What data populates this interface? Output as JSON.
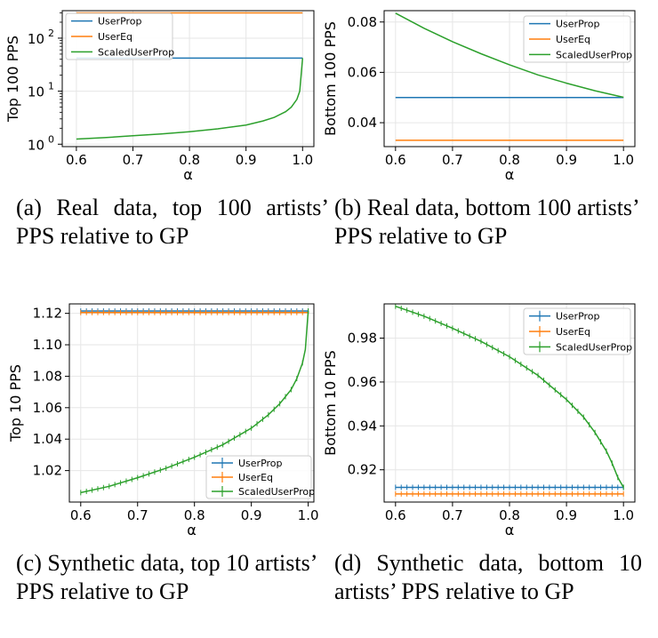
{
  "colors": {
    "UserProp": "#1f77b4",
    "UserEq": "#ff7f0e",
    "ScaledUserProp": "#2ca02c",
    "grid": "#e6e6e6",
    "axis": "#000000"
  },
  "chart_data": [
    {
      "type": "line",
      "panel": "a",
      "ylabel": "Top 100 PPS",
      "xlabel": "α",
      "yscale": "log",
      "xlim": [
        0.575,
        1.02
      ],
      "ylim": [
        0.9,
        330
      ],
      "xticks": [
        0.6,
        0.7,
        0.8,
        0.9,
        1.0
      ],
      "xtick_labels": [
        "0.6",
        "0.7",
        "0.8",
        "0.9",
        "1.0"
      ],
      "yticks": [
        1,
        10,
        100
      ],
      "ytick_labels": [
        "10",
        "10",
        "10"
      ],
      "ytick_exponents": [
        "0",
        "1",
        "2"
      ],
      "legend_position": "top-left",
      "markers": false,
      "grid": true,
      "series": [
        {
          "name": "UserProp",
          "x": [
            0.6,
            1.0
          ],
          "y": [
            42,
            42
          ]
        },
        {
          "name": "UserEq",
          "x": [
            0.6,
            1.0
          ],
          "y": [
            300,
            300
          ]
        },
        {
          "name": "ScaledUserProp",
          "x": [
            0.6,
            0.65,
            0.7,
            0.75,
            0.8,
            0.85,
            0.9,
            0.93,
            0.95,
            0.97,
            0.98,
            0.99,
            0.995,
            1.0
          ],
          "y": [
            1.25,
            1.33,
            1.44,
            1.56,
            1.72,
            1.95,
            2.3,
            2.75,
            3.2,
            4.1,
            5.0,
            7.0,
            10.0,
            42
          ]
        }
      ],
      "caption_line1": "(a) Real data, top 100 artists’",
      "caption_line2": "PPS relative to GP"
    },
    {
      "type": "line",
      "panel": "b",
      "ylabel": "Bottom 100 PPS",
      "xlabel": "α",
      "yscale": "linear",
      "xlim": [
        0.58,
        1.02
      ],
      "ylim": [
        0.0305,
        0.0845
      ],
      "xticks": [
        0.6,
        0.7,
        0.8,
        0.9,
        1.0
      ],
      "xtick_labels": [
        "0.6",
        "0.7",
        "0.8",
        "0.9",
        "1.0"
      ],
      "yticks": [
        0.04,
        0.06,
        0.08
      ],
      "ytick_labels": [
        "0.04",
        "0.06",
        "0.08"
      ],
      "legend_position": "top-right",
      "markers": false,
      "grid": true,
      "series": [
        {
          "name": "UserProp",
          "x": [
            0.6,
            1.0
          ],
          "y": [
            0.05,
            0.05
          ]
        },
        {
          "name": "UserEq",
          "x": [
            0.6,
            1.0
          ],
          "y": [
            0.033,
            0.033
          ]
        },
        {
          "name": "ScaledUserProp",
          "x": [
            0.6,
            0.65,
            0.7,
            0.75,
            0.8,
            0.85,
            0.9,
            0.95,
            1.0
          ],
          "y": [
            0.0835,
            0.0775,
            0.0722,
            0.0674,
            0.063,
            0.059,
            0.0557,
            0.0527,
            0.0501
          ]
        }
      ],
      "caption_line1": "(b) Real data, bottom 100 artists’",
      "caption_line2": "PPS relative to GP"
    },
    {
      "type": "line",
      "panel": "c",
      "ylabel": "Top 10 PPS",
      "xlabel": "α",
      "yscale": "linear",
      "xlim": [
        0.58,
        1.01
      ],
      "ylim": [
        1.0,
        1.126
      ],
      "xticks": [
        0.6,
        0.7,
        0.8,
        0.9,
        1.0
      ],
      "xtick_labels": [
        "0.6",
        "0.7",
        "0.8",
        "0.9",
        "1.0"
      ],
      "yticks": [
        1.02,
        1.04,
        1.06,
        1.08,
        1.1,
        1.12
      ],
      "ytick_labels": [
        "1.02",
        "1.04",
        "1.06",
        "1.08",
        "1.10",
        "1.12"
      ],
      "legend_position": "bottom-right",
      "markers": true,
      "grid": true,
      "series": [
        {
          "name": "UserProp",
          "x": [
            0.6,
            1.0
          ],
          "y": [
            1.1215,
            1.1215
          ]
        },
        {
          "name": "UserEq",
          "x": [
            0.6,
            1.0
          ],
          "y": [
            1.1205,
            1.1205
          ]
        },
        {
          "name": "ScaledUserProp",
          "x": [
            0.6,
            0.65,
            0.7,
            0.75,
            0.8,
            0.85,
            0.9,
            0.93,
            0.95,
            0.97,
            0.98,
            0.99,
            0.995,
            1.0
          ],
          "y": [
            1.006,
            1.01,
            1.0155,
            1.0215,
            1.0285,
            1.0365,
            1.047,
            1.0555,
            1.0625,
            1.0715,
            1.0785,
            1.0885,
            1.097,
            1.1215
          ]
        }
      ],
      "caption_line1": "(c) Synthetic data, top 10 artists’",
      "caption_line2": "PPS relative to GP"
    },
    {
      "type": "line",
      "panel": "d",
      "ylabel": "Bottom 10 PPS",
      "xlabel": "α",
      "yscale": "linear",
      "xlim": [
        0.58,
        1.02
      ],
      "ylim": [
        0.9053,
        0.9956
      ],
      "xticks": [
        0.6,
        0.7,
        0.8,
        0.9,
        1.0
      ],
      "xtick_labels": [
        "0.6",
        "0.7",
        "0.8",
        "0.9",
        "1.0"
      ],
      "yticks": [
        0.92,
        0.94,
        0.96,
        0.98
      ],
      "ytick_labels": [
        "0.92",
        "0.94",
        "0.96",
        "0.98"
      ],
      "legend_position": "top-right",
      "markers": true,
      "grid": true,
      "series": [
        {
          "name": "UserProp",
          "x": [
            0.6,
            1.0
          ],
          "y": [
            0.912,
            0.912
          ]
        },
        {
          "name": "UserEq",
          "x": [
            0.6,
            1.0
          ],
          "y": [
            0.909,
            0.909
          ]
        },
        {
          "name": "ScaledUserProp",
          "x": [
            0.6,
            0.65,
            0.7,
            0.75,
            0.8,
            0.85,
            0.9,
            0.93,
            0.95,
            0.97,
            0.98,
            0.99,
            1.0
          ],
          "y": [
            0.9945,
            0.99,
            0.9845,
            0.9785,
            0.9715,
            0.963,
            0.952,
            0.944,
            0.937,
            0.9285,
            0.923,
            0.9165,
            0.912
          ]
        }
      ],
      "caption_line1": "(d) Synthetic data, bottom 10",
      "caption_line2": "artists’ PPS relative to GP"
    }
  ]
}
